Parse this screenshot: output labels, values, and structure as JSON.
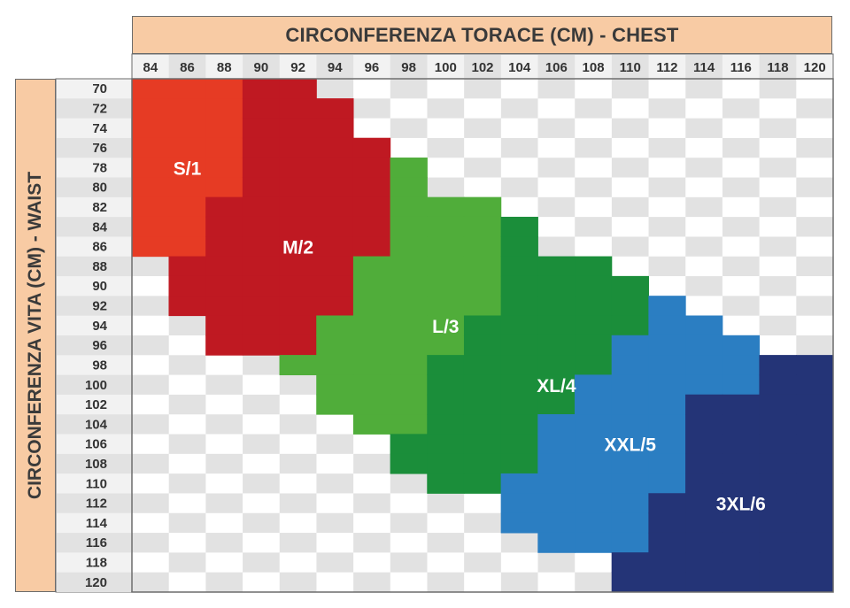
{
  "chart_data": {
    "type": "heatmap",
    "title": "CIRCONFERENZA TORACE (CM) - CHEST",
    "xlabel": "CIRCONFERENZA TORACE (CM) - CHEST",
    "ylabel": "CIRCONFERENZA VITA (CM) - WAIST",
    "x": [
      84,
      86,
      88,
      90,
      92,
      94,
      96,
      98,
      100,
      102,
      104,
      106,
      108,
      110,
      112,
      114,
      116,
      118,
      120
    ],
    "y": [
      70,
      72,
      74,
      76,
      78,
      80,
      82,
      84,
      86,
      88,
      90,
      92,
      94,
      96,
      98,
      100,
      102,
      104,
      106,
      108,
      110,
      112,
      114,
      116,
      118,
      120
    ],
    "grid": true,
    "series": [
      {
        "name": "S/1",
        "color": "#e63b24",
        "label_at": [
          86,
          78
        ],
        "cells": [
          {
            "waist": 70,
            "chest": [
              84,
              86,
              88
            ]
          },
          {
            "waist": 72,
            "chest": [
              84,
              86,
              88
            ]
          },
          {
            "waist": 74,
            "chest": [
              84,
              86,
              88
            ]
          },
          {
            "waist": 76,
            "chest": [
              84,
              86,
              88
            ]
          },
          {
            "waist": 78,
            "chest": [
              84,
              86,
              88
            ]
          },
          {
            "waist": 80,
            "chest": [
              84,
              86,
              88
            ]
          },
          {
            "waist": 82,
            "chest": [
              84,
              86
            ]
          },
          {
            "waist": 84,
            "chest": [
              84,
              86
            ]
          },
          {
            "waist": 86,
            "chest": [
              84,
              86
            ]
          }
        ]
      },
      {
        "name": "M/2",
        "color": "#bf1922",
        "label_at": [
          92,
          86
        ],
        "cells": [
          {
            "waist": 70,
            "chest": [
              90,
              92
            ]
          },
          {
            "waist": 72,
            "chest": [
              90,
              92,
              94
            ]
          },
          {
            "waist": 74,
            "chest": [
              90,
              92,
              94
            ]
          },
          {
            "waist": 76,
            "chest": [
              90,
              92,
              94,
              96
            ]
          },
          {
            "waist": 78,
            "chest": [
              90,
              92,
              94,
              96
            ]
          },
          {
            "waist": 80,
            "chest": [
              90,
              92,
              94,
              96
            ]
          },
          {
            "waist": 82,
            "chest": [
              88,
              90,
              92,
              94,
              96
            ]
          },
          {
            "waist": 84,
            "chest": [
              88,
              90,
              92,
              94,
              96
            ]
          },
          {
            "waist": 86,
            "chest": [
              88,
              90,
              92,
              94,
              96
            ]
          },
          {
            "waist": 88,
            "chest": [
              86,
              88,
              90,
              92,
              94
            ]
          },
          {
            "waist": 90,
            "chest": [
              86,
              88,
              90,
              92,
              94
            ]
          },
          {
            "waist": 92,
            "chest": [
              86,
              88,
              90,
              92,
              94
            ]
          },
          {
            "waist": 94,
            "chest": [
              88,
              90,
              92
            ]
          },
          {
            "waist": 96,
            "chest": [
              88,
              90,
              92
            ]
          }
        ]
      },
      {
        "name": "L/3",
        "color": "#50ad3a",
        "label_at": [
          100,
          94
        ],
        "cells": [
          {
            "waist": 78,
            "chest": [
              98
            ]
          },
          {
            "waist": 80,
            "chest": [
              98
            ]
          },
          {
            "waist": 82,
            "chest": [
              98,
              100,
              102
            ]
          },
          {
            "waist": 84,
            "chest": [
              98,
              100,
              102
            ]
          },
          {
            "waist": 86,
            "chest": [
              98,
              100,
              102
            ]
          },
          {
            "waist": 88,
            "chest": [
              96,
              98,
              100,
              102
            ]
          },
          {
            "waist": 90,
            "chest": [
              96,
              98,
              100,
              102
            ]
          },
          {
            "waist": 92,
            "chest": [
              96,
              98,
              100,
              102
            ]
          },
          {
            "waist": 94,
            "chest": [
              94,
              96,
              98,
              100
            ]
          },
          {
            "waist": 96,
            "chest": [
              94,
              96,
              98,
              100
            ]
          },
          {
            "waist": 98,
            "chest": [
              92,
              94,
              96,
              98
            ]
          },
          {
            "waist": 100,
            "chest": [
              94,
              96,
              98
            ]
          },
          {
            "waist": 102,
            "chest": [
              94,
              96,
              98
            ]
          },
          {
            "waist": 104,
            "chest": [
              96,
              98
            ]
          }
        ]
      },
      {
        "name": "XL/4",
        "color": "#1b8e3a",
        "label_at": [
          106,
          100
        ],
        "cells": [
          {
            "waist": 84,
            "chest": [
              104
            ]
          },
          {
            "waist": 86,
            "chest": [
              104
            ]
          },
          {
            "waist": 88,
            "chest": [
              104,
              106,
              108
            ]
          },
          {
            "waist": 90,
            "chest": [
              104,
              106,
              108,
              110
            ]
          },
          {
            "waist": 92,
            "chest": [
              104,
              106,
              108,
              110
            ]
          },
          {
            "waist": 94,
            "chest": [
              102,
              104,
              106,
              108,
              110
            ]
          },
          {
            "waist": 96,
            "chest": [
              102,
              104,
              106,
              108
            ]
          },
          {
            "waist": 98,
            "chest": [
              100,
              102,
              104,
              106,
              108
            ]
          },
          {
            "waist": 100,
            "chest": [
              100,
              102,
              104,
              106
            ]
          },
          {
            "waist": 102,
            "chest": [
              100,
              102,
              104,
              106
            ]
          },
          {
            "waist": 104,
            "chest": [
              100,
              102,
              104
            ]
          },
          {
            "waist": 106,
            "chest": [
              98,
              100,
              102,
              104
            ]
          },
          {
            "waist": 108,
            "chest": [
              98,
              100,
              102,
              104
            ]
          },
          {
            "waist": 110,
            "chest": [
              100,
              102
            ]
          }
        ]
      },
      {
        "name": "XXL/5",
        "color": "#2b7ec2",
        "label_at": [
          110,
          106
        ],
        "cells": [
          {
            "waist": 92,
            "chest": [
              112
            ]
          },
          {
            "waist": 94,
            "chest": [
              112,
              114
            ]
          },
          {
            "waist": 96,
            "chest": [
              110,
              112,
              114,
              116
            ]
          },
          {
            "waist": 98,
            "chest": [
              110,
              112,
              114,
              116
            ]
          },
          {
            "waist": 100,
            "chest": [
              108,
              110,
              112,
              114,
              116
            ]
          },
          {
            "waist": 102,
            "chest": [
              108,
              110,
              112
            ]
          },
          {
            "waist": 104,
            "chest": [
              106,
              108,
              110,
              112
            ]
          },
          {
            "waist": 106,
            "chest": [
              106,
              108,
              110,
              112
            ]
          },
          {
            "waist": 108,
            "chest": [
              106,
              108,
              110,
              112
            ]
          },
          {
            "waist": 110,
            "chest": [
              104,
              106,
              108,
              110,
              112
            ]
          },
          {
            "waist": 112,
            "chest": [
              104,
              106,
              108,
              110
            ]
          },
          {
            "waist": 114,
            "chest": [
              104,
              106,
              108,
              110
            ]
          },
          {
            "waist": 116,
            "chest": [
              106,
              108,
              110
            ]
          }
        ]
      },
      {
        "name": "3XL/6",
        "color": "#243477",
        "label_at": [
          116,
          112
        ],
        "cells": [
          {
            "waist": 98,
            "chest": [
              118,
              120
            ]
          },
          {
            "waist": 100,
            "chest": [
              118,
              120
            ]
          },
          {
            "waist": 102,
            "chest": [
              114,
              116,
              118,
              120
            ]
          },
          {
            "waist": 104,
            "chest": [
              114,
              116,
              118,
              120
            ]
          },
          {
            "waist": 106,
            "chest": [
              114,
              116,
              118,
              120
            ]
          },
          {
            "waist": 108,
            "chest": [
              114,
              116,
              118,
              120
            ]
          },
          {
            "waist": 110,
            "chest": [
              114,
              116,
              118,
              120
            ]
          },
          {
            "waist": 112,
            "chest": [
              112,
              114,
              116,
              118,
              120
            ]
          },
          {
            "waist": 114,
            "chest": [
              112,
              114,
              116,
              118,
              120
            ]
          },
          {
            "waist": 116,
            "chest": [
              112,
              114,
              116,
              118,
              120
            ]
          },
          {
            "waist": 118,
            "chest": [
              110,
              112,
              114,
              116,
              118,
              120
            ]
          },
          {
            "waist": 120,
            "chest": [
              110,
              112,
              114,
              116,
              118,
              120
            ]
          }
        ]
      }
    ]
  },
  "colors": {
    "header_band": "#f8cba4",
    "grid_light": "#ffffff",
    "grid_dark": "#e2e2e2",
    "border": "#6b6b6b"
  }
}
